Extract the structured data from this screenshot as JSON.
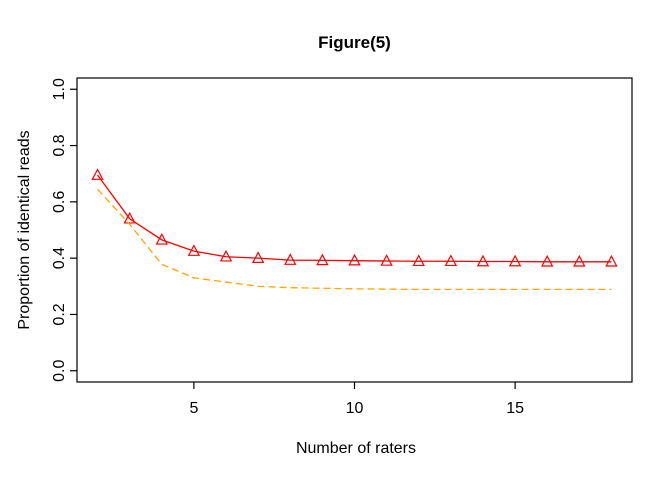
{
  "window": {
    "background": "#ffffff"
  },
  "chart_data": {
    "type": "line",
    "title": "Figure(5)",
    "xlabel": "Number of raters",
    "ylabel": "Proportion of identical reads",
    "x": [
      2,
      3,
      4,
      5,
      6,
      7,
      8,
      9,
      10,
      11,
      12,
      13,
      14,
      15,
      16,
      17,
      18
    ],
    "series": [
      {
        "name": "red-solid-triangles",
        "color": "#ff0000",
        "line_style": "solid",
        "marker": "open-triangle-up",
        "values": [
          0.695,
          0.54,
          0.465,
          0.425,
          0.405,
          0.4,
          0.393,
          0.392,
          0.391,
          0.39,
          0.389,
          0.389,
          0.388,
          0.388,
          0.387,
          0.387,
          0.387
        ]
      },
      {
        "name": "orange-dashed",
        "color": "#ffa500",
        "line_style": "dashed",
        "marker": "none",
        "values": [
          0.645,
          0.52,
          0.378,
          0.33,
          0.315,
          0.3,
          0.295,
          0.293,
          0.291,
          0.29,
          0.289,
          0.289,
          0.289,
          0.289,
          0.289,
          0.289,
          0.289
        ]
      }
    ],
    "xticks": [
      5,
      10,
      15
    ],
    "yticks": [
      "0.0",
      "0.2",
      "0.4",
      "0.6",
      "0.8",
      "1.0"
    ],
    "xlim": [
      1.36,
      18.64
    ],
    "ylim": [
      -0.04,
      1.04
    ],
    "grid": false,
    "legend": "none",
    "axis_color": "#000000",
    "text_color": "#000000"
  }
}
